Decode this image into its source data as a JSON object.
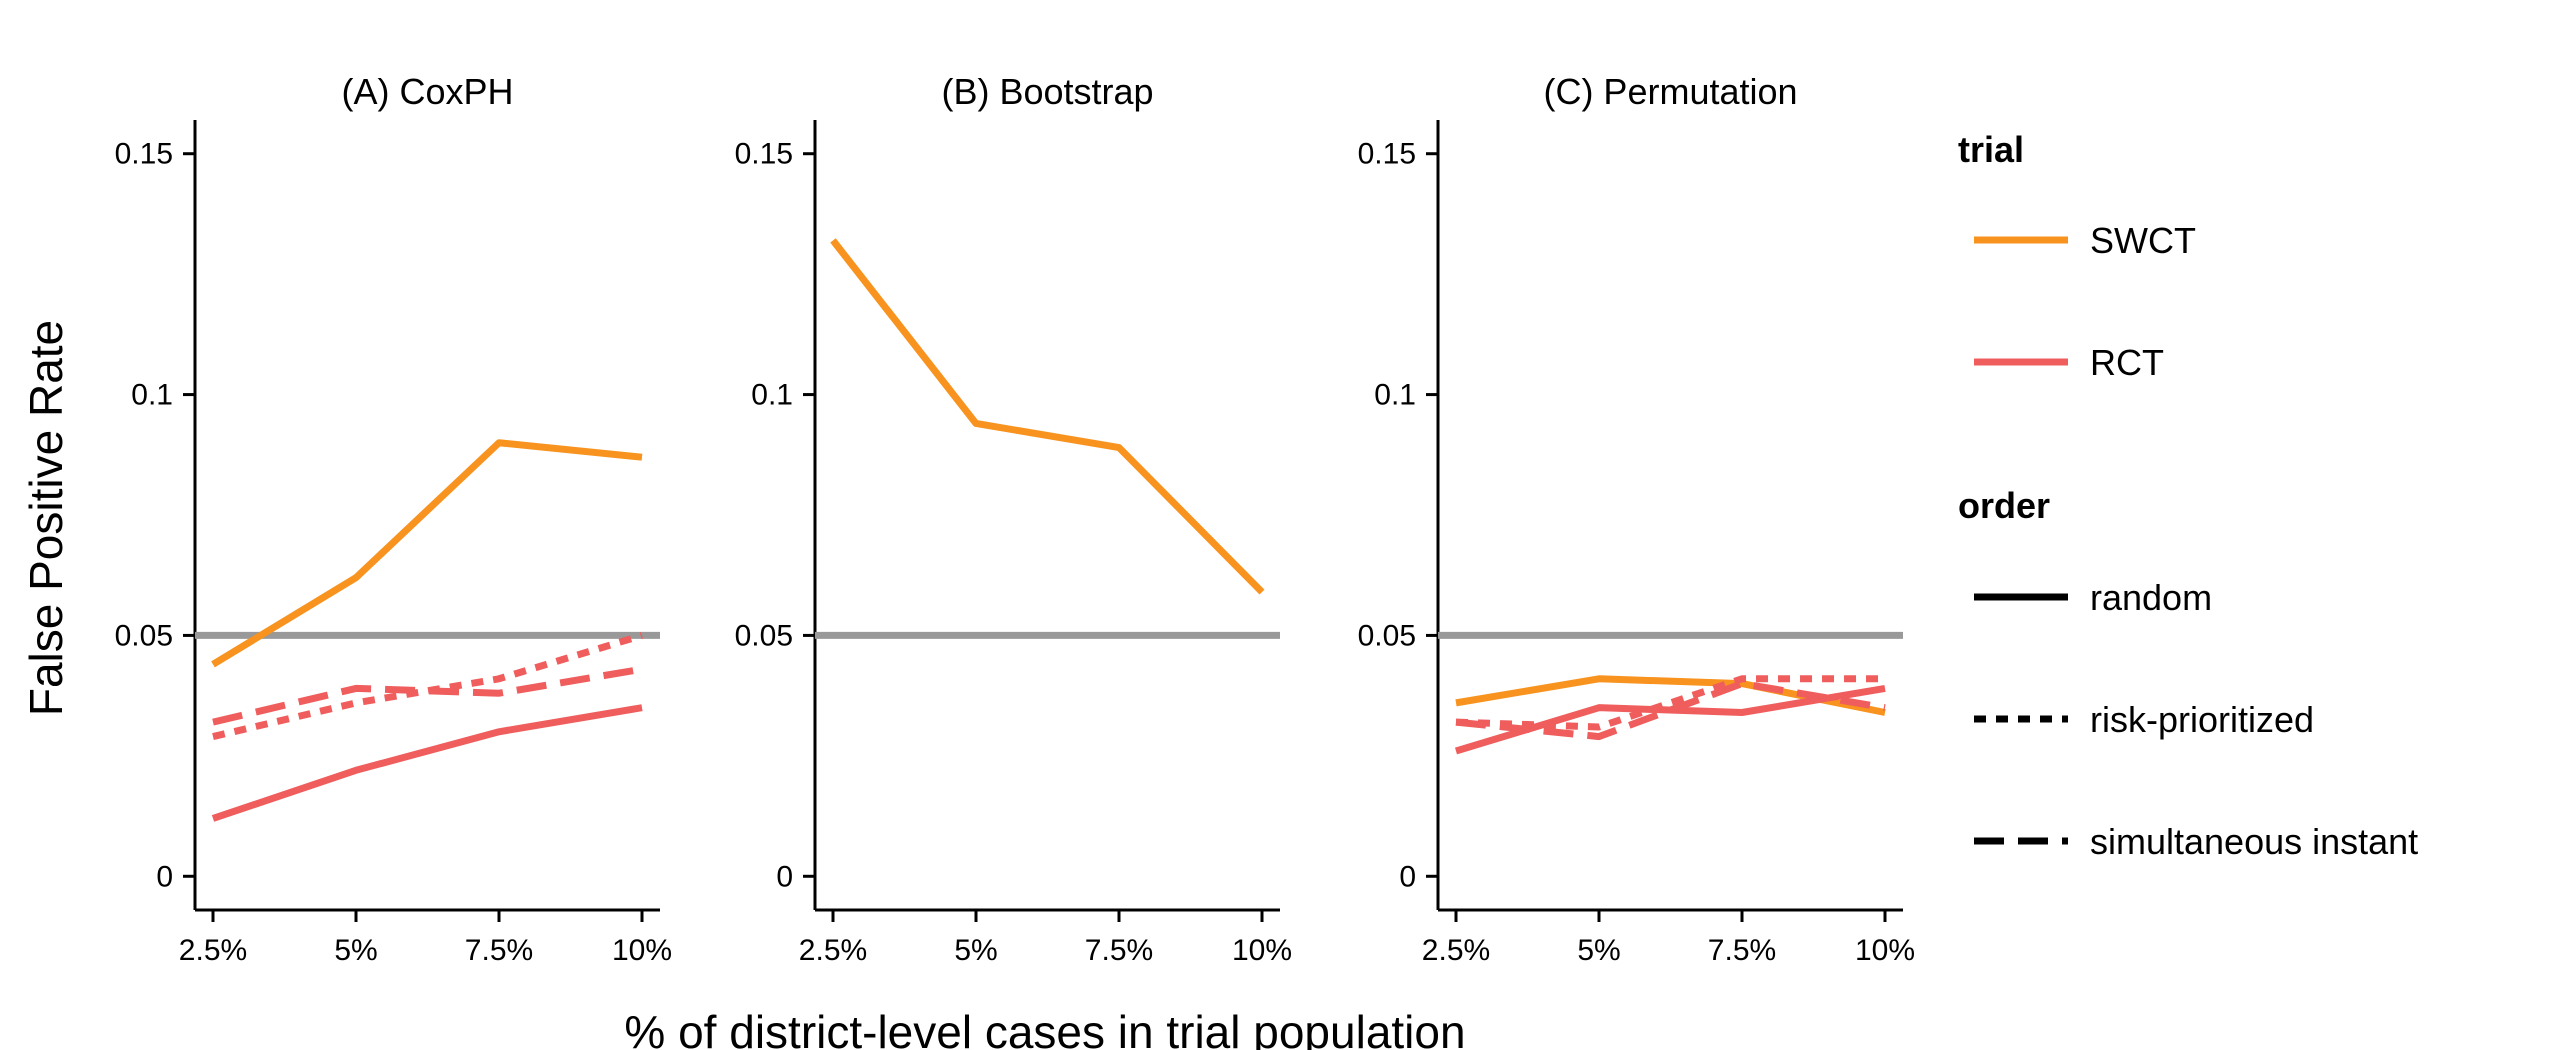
{
  "chart_data": {
    "type": "line",
    "xlabel": "% of district-level cases in trial population",
    "ylabel": "False Positive Rate",
    "x_categories": [
      "2.5%",
      "5%",
      "7.5%",
      "10%"
    ],
    "y_ticks": [
      {
        "value": 0,
        "label": "0"
      },
      {
        "value": 0.05,
        "label": "0.05"
      },
      {
        "value": 0.1,
        "label": "0.1"
      },
      {
        "value": 0.15,
        "label": "0.15"
      }
    ],
    "ylim": [
      -0.007,
      0.157
    ],
    "reference_line": {
      "value": 0.05,
      "color": "#999999"
    },
    "grid": false,
    "legend_position": "right",
    "legend": {
      "trial_title": "trial",
      "trial": [
        {
          "key": "SWCT",
          "label": "SWCT",
          "color": "#F7931E"
        },
        {
          "key": "RCT",
          "label": "RCT",
          "color": "#EF5D5D"
        }
      ],
      "order_title": "order",
      "order": [
        {
          "key": "random",
          "label": "random",
          "dash": "solid"
        },
        {
          "key": "risk-prioritized",
          "label": "risk-prioritized",
          "dash": "dotted"
        },
        {
          "key": "simultaneous instant",
          "label": "simultaneous instant",
          "dash": "dashed"
        }
      ]
    },
    "panels": [
      {
        "title": "(A) CoxPH",
        "series": [
          {
            "trial": "SWCT",
            "order": "random",
            "values": [
              0.044,
              0.062,
              0.09,
              0.087
            ]
          },
          {
            "trial": "RCT",
            "order": "random",
            "values": [
              0.012,
              0.022,
              0.03,
              0.035
            ]
          },
          {
            "trial": "RCT",
            "order": "risk-prioritized",
            "values": [
              0.029,
              0.036,
              0.041,
              0.05
            ]
          },
          {
            "trial": "RCT",
            "order": "simultaneous instant",
            "values": [
              0.032,
              0.039,
              0.038,
              0.043
            ]
          }
        ]
      },
      {
        "title": "(B) Bootstrap",
        "series": [
          {
            "trial": "SWCT",
            "order": "random",
            "values": [
              0.132,
              0.094,
              0.089,
              0.059
            ]
          }
        ]
      },
      {
        "title": "(C) Permutation",
        "series": [
          {
            "trial": "SWCT",
            "order": "random",
            "values": [
              0.036,
              0.041,
              0.04,
              0.034
            ]
          },
          {
            "trial": "RCT",
            "order": "random",
            "values": [
              0.026,
              0.035,
              0.034,
              0.039
            ]
          },
          {
            "trial": "RCT",
            "order": "risk-prioritized",
            "values": [
              0.032,
              0.031,
              0.041,
              0.041
            ]
          },
          {
            "trial": "RCT",
            "order": "simultaneous instant",
            "values": [
              0.032,
              0.029,
              0.04,
              0.035
            ]
          }
        ]
      }
    ]
  }
}
